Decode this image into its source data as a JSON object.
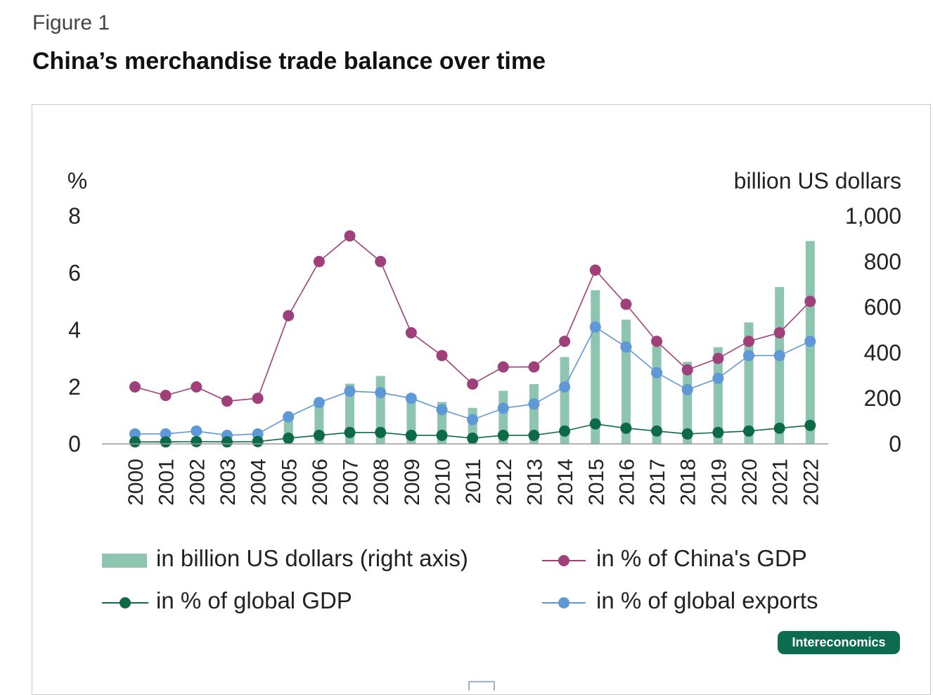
{
  "figure_label": "Figure 1",
  "title": "China’s merchandise trade balance over time",
  "logo_text": "Intereconomics",
  "colors": {
    "bars": "#8ec5b0",
    "china_gdp": "#a0407a",
    "global_gdp": "#0c6a46",
    "global_exports": "#5f98d6",
    "axis": "#999999"
  },
  "chart_data": {
    "type": "bar",
    "title": "China’s merchandise trade balance over time",
    "left_axis_label": "%",
    "right_axis_label": "billion US dollars",
    "left_ticks": [
      "0",
      "2",
      "4",
      "6",
      "8"
    ],
    "right_ticks": [
      "0",
      "200",
      "400",
      "600",
      "800",
      "1,000"
    ],
    "left_ylim": [
      0,
      8
    ],
    "right_ylim": [
      0,
      1000
    ],
    "categories": [
      "2000",
      "2001",
      "2002",
      "2003",
      "2004",
      "2005",
      "2006",
      "2007",
      "2008",
      "2009",
      "2010",
      "2011",
      "2012",
      "2013",
      "2014",
      "2015",
      "2016",
      "2017",
      "2018",
      "2019",
      "2020",
      "2021",
      "2022"
    ],
    "series": [
      {
        "name": "in billion US dollars (right axis)",
        "type": "bar",
        "axis": "right",
        "values": [
          24,
          23,
          30,
          25,
          32,
          102,
          178,
          264,
          298,
          196,
          184,
          158,
          233,
          262,
          381,
          674,
          545,
          428,
          360,
          424,
          533,
          688,
          890
        ]
      },
      {
        "name": "in % of China's GDP",
        "type": "line",
        "axis": "left",
        "values": [
          2.0,
          1.7,
          2.0,
          1.5,
          1.6,
          4.5,
          6.4,
          7.3,
          6.4,
          3.9,
          3.1,
          2.1,
          2.7,
          2.7,
          3.6,
          6.1,
          4.9,
          3.6,
          2.6,
          3.0,
          3.6,
          3.9,
          5.0
        ]
      },
      {
        "name": "in % of global GDP",
        "type": "line",
        "axis": "left",
        "values": [
          0.07,
          0.07,
          0.08,
          0.07,
          0.08,
          0.2,
          0.3,
          0.4,
          0.4,
          0.3,
          0.3,
          0.2,
          0.3,
          0.3,
          0.45,
          0.7,
          0.55,
          0.45,
          0.35,
          0.4,
          0.45,
          0.55,
          0.65
        ]
      },
      {
        "name": "in % of global exports",
        "type": "line",
        "axis": "left",
        "values": [
          0.35,
          0.35,
          0.45,
          0.3,
          0.35,
          0.95,
          1.45,
          1.85,
          1.8,
          1.6,
          1.2,
          0.85,
          1.25,
          1.4,
          2.0,
          4.1,
          3.4,
          2.5,
          1.9,
          2.3,
          3.1,
          3.1,
          3.6
        ]
      }
    ],
    "legend_position": "bottom",
    "grid": false
  }
}
